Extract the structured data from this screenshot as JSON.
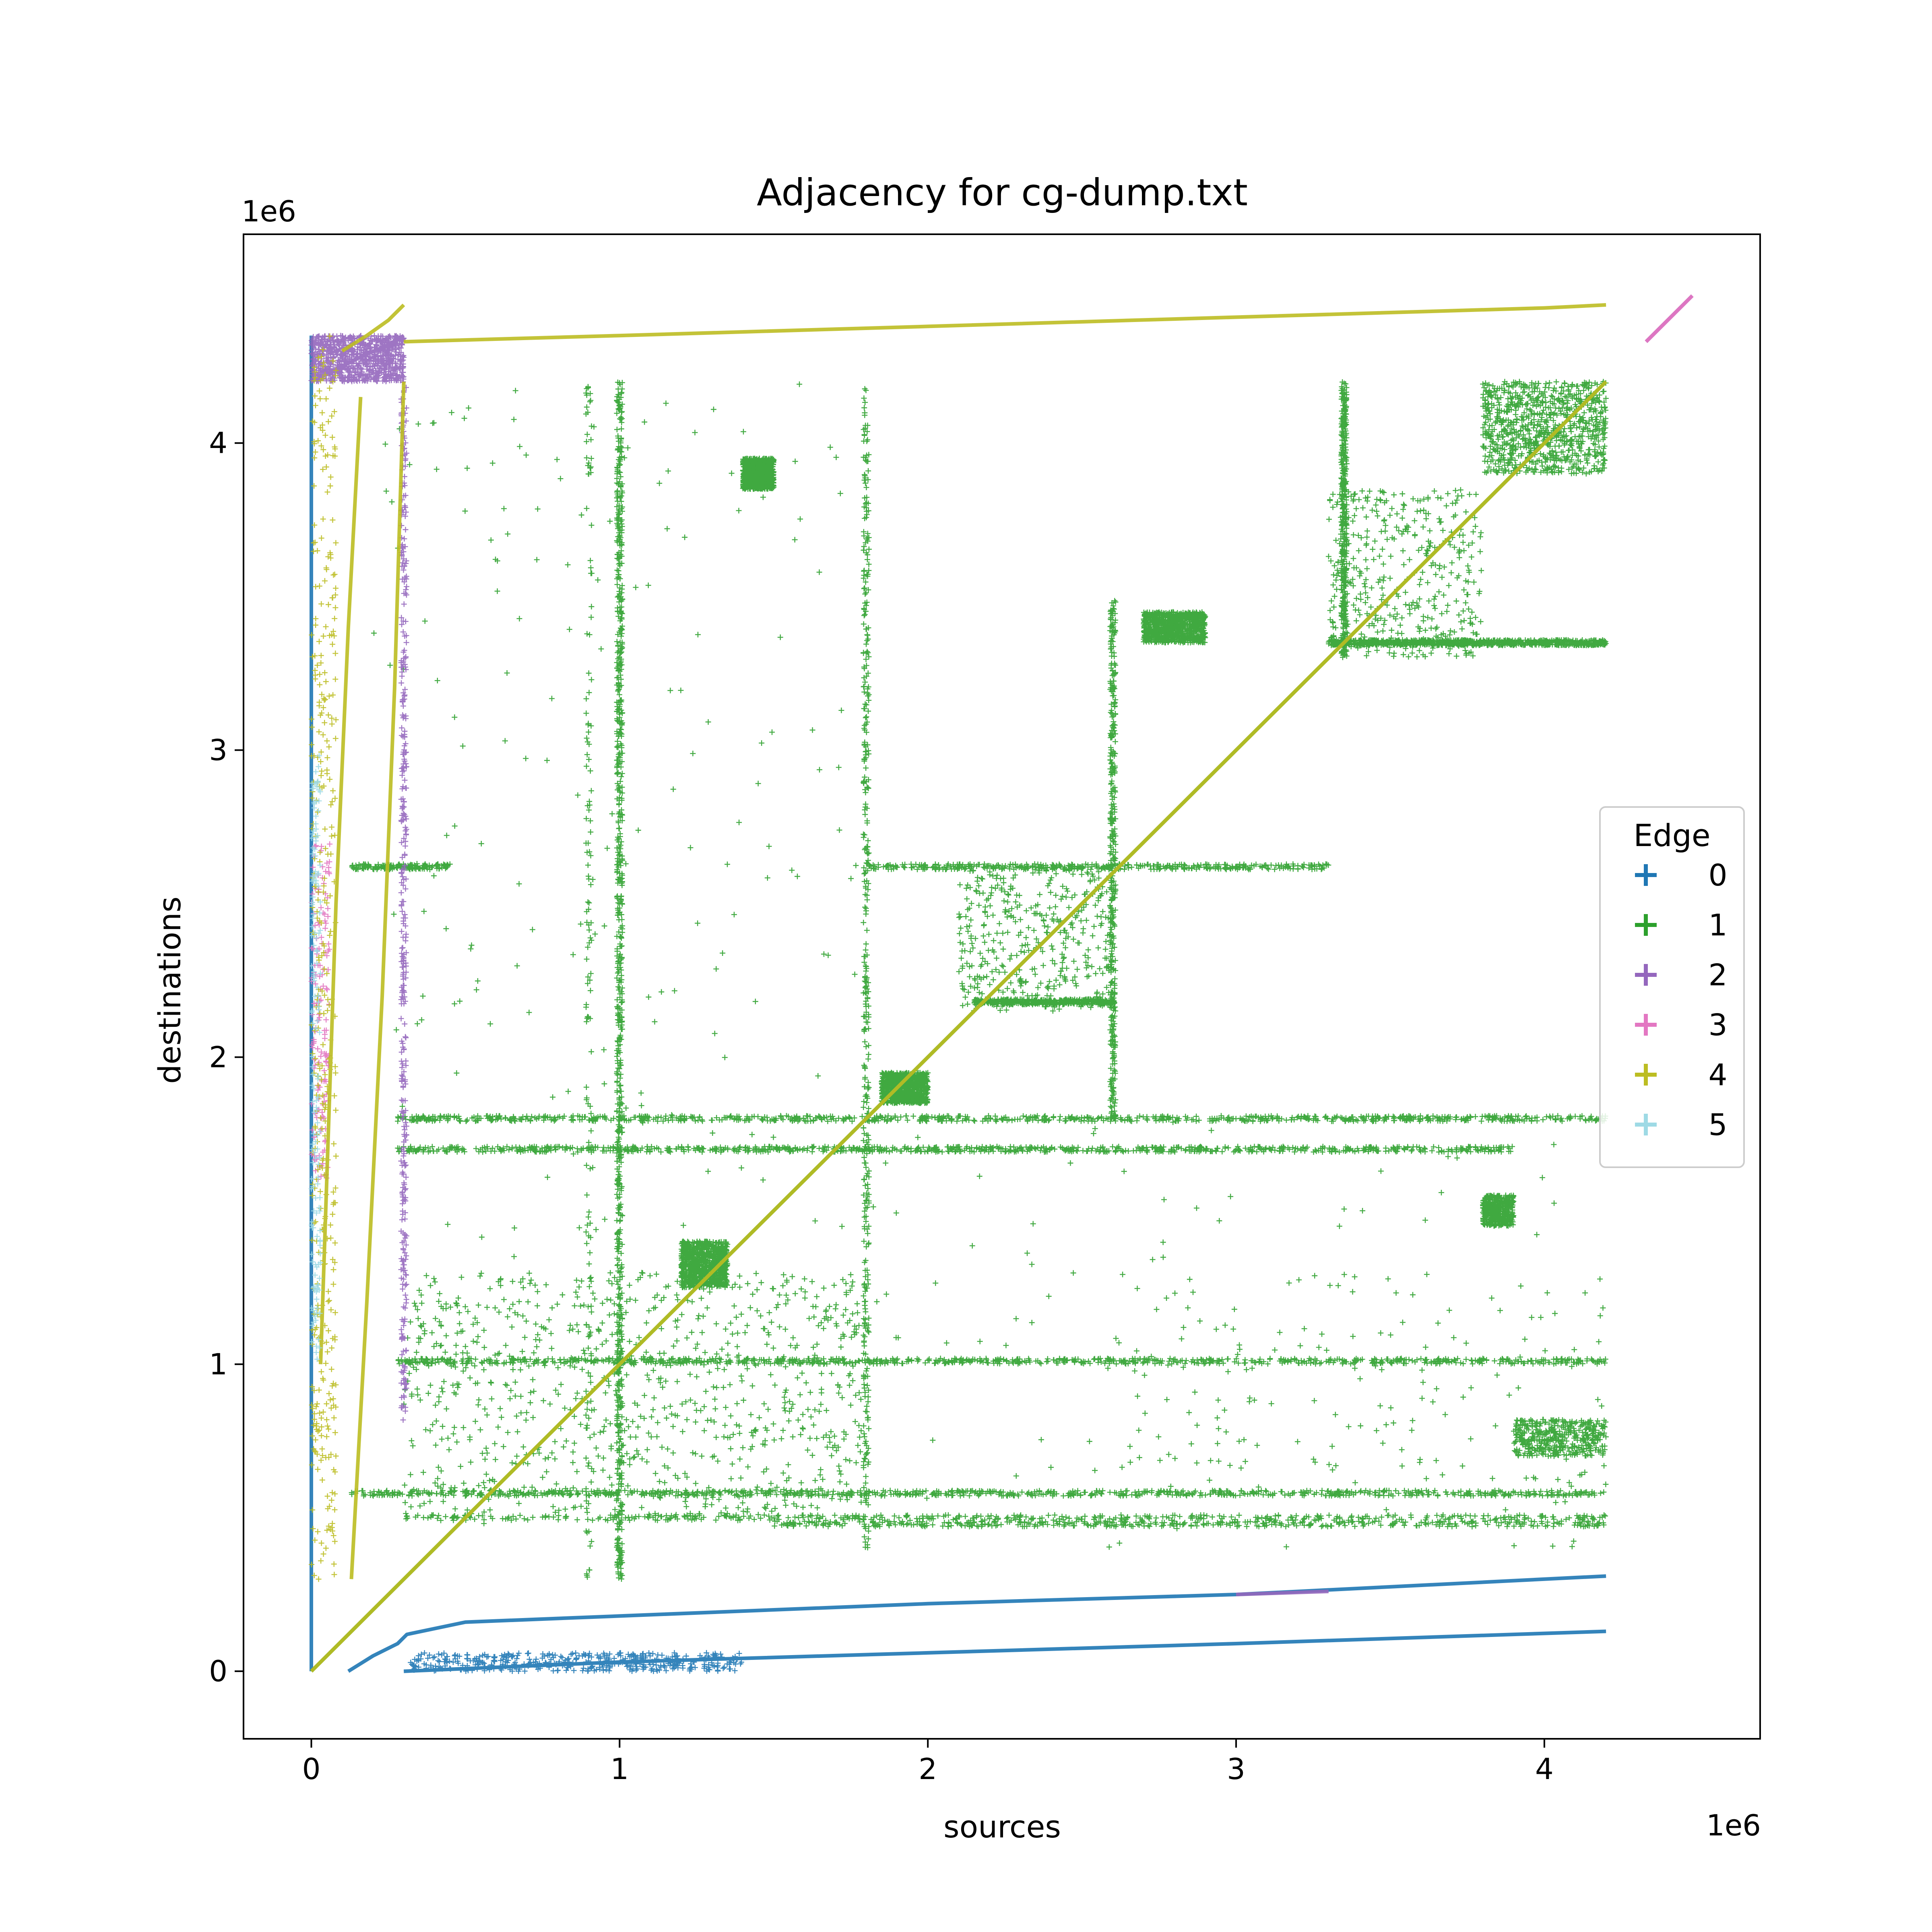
{
  "chart_data": {
    "type": "scatter",
    "title": "Adjacency for cg-dump.txt",
    "xlabel": "sources",
    "ylabel": "destinations",
    "x_offset_label": "1e6",
    "y_offset_label": "1e6",
    "xlim": [
      -220000,
      4700000
    ],
    "ylim": [
      -220000,
      4680000
    ],
    "x_ticks": [
      {
        "value": 0,
        "label": "0"
      },
      {
        "value": 1000000,
        "label": "1"
      },
      {
        "value": 2000000,
        "label": "2"
      },
      {
        "value": 3000000,
        "label": "3"
      },
      {
        "value": 4000000,
        "label": "4"
      }
    ],
    "y_ticks": [
      {
        "value": 0,
        "label": "0"
      },
      {
        "value": 1000000,
        "label": "1"
      },
      {
        "value": 2000000,
        "label": "2"
      },
      {
        "value": 3000000,
        "label": "3"
      },
      {
        "value": 4000000,
        "label": "4"
      }
    ],
    "grid": false,
    "legend": {
      "title": "Edge",
      "placement": "center-right",
      "entries": [
        {
          "label": "0",
          "color": "#1f77b4"
        },
        {
          "label": "1",
          "color": "#2ca02c"
        },
        {
          "label": "2",
          "color": "#9467bd"
        },
        {
          "label": "3",
          "color": "#e377c2"
        },
        {
          "label": "4",
          "color": "#bcbd22"
        },
        {
          "label": "5",
          "color": "#9edae5"
        }
      ]
    },
    "series": [
      {
        "name": "0",
        "color": "#1f77b4",
        "lines": [
          [
            [
              0,
              0
            ],
            [
              0,
              4350000
            ]
          ],
          [
            [
              120000,
              0
            ],
            [
              200000,
              50000
            ],
            [
              280000,
              90000
            ],
            [
              310000,
              120000
            ],
            [
              500000,
              160000
            ],
            [
              1000000,
              180000
            ],
            [
              2000000,
              220000
            ],
            [
              3000000,
              250000
            ],
            [
              4200000,
              310000
            ]
          ],
          [
            [
              300000,
              0
            ],
            [
              1000000,
              30000
            ],
            [
              2000000,
              60000
            ],
            [
              3000000,
              90000
            ],
            [
              4200000,
              130000
            ]
          ]
        ],
        "clusters": [
          {
            "x": [
              320000,
              1400000
            ],
            "y": [
              0,
              60000
            ],
            "density": "medium"
          }
        ]
      },
      {
        "name": "1",
        "color": "#2ca02c",
        "lines": [
          [
            [
              0,
              0
            ],
            [
              4200000,
              4200000
            ]
          ]
        ],
        "rows": [
          {
            "y": 580000,
            "x": [
              130000,
              4200000
            ],
            "density": "high"
          },
          {
            "y": 500000,
            "x": [
              300000,
              4200000
            ],
            "density": "medium"
          },
          {
            "y": 480000,
            "x": [
              1500000,
              4200000
            ],
            "density": "medium"
          },
          {
            "y": 1010000,
            "x": [
              280000,
              4200000
            ],
            "density": "high"
          },
          {
            "y": 1700000,
            "x": [
              280000,
              3900000
            ],
            "density": "high"
          },
          {
            "y": 1800000,
            "x": [
              280000,
              4200000
            ],
            "density": "high"
          },
          {
            "y": 2620000,
            "x": [
              1800000,
              3300000
            ],
            "density": "medium"
          },
          {
            "y": 2620000,
            "x": [
              130000,
              450000
            ],
            "density": "low"
          },
          {
            "y": 3350000,
            "x": [
              3300000,
              4200000
            ],
            "density": "high"
          },
          {
            "y": 2180000,
            "x": [
              2150000,
              2600000
            ],
            "density": "medium"
          }
        ],
        "columns": [
          {
            "x": 1000000,
            "y": [
              300000,
              4200000
            ],
            "density": "high"
          },
          {
            "x": 1800000,
            "y": [
              400000,
              4200000
            ],
            "density": "medium"
          },
          {
            "x": 2600000,
            "y": [
              1800000,
              3500000
            ],
            "density": "medium"
          },
          {
            "x": 3350000,
            "y": [
              3300000,
              4200000
            ],
            "density": "medium"
          },
          {
            "x": 900000,
            "y": [
              300000,
              4200000
            ],
            "density": "low"
          }
        ],
        "clusters": [
          {
            "x": [
              300000,
              1800000
            ],
            "y": [
              500000,
              1300000
            ],
            "density": "high"
          },
          {
            "x": [
              300000,
              4200000
            ],
            "y": [
              400000,
              1800000
            ],
            "density": "low"
          },
          {
            "x": [
              200000,
              1800000
            ],
            "y": [
              1800000,
              4200000
            ],
            "density": "low"
          },
          {
            "x": [
              2100000,
              2600000
            ],
            "y": [
              2150000,
              2620000
            ],
            "density": "medium"
          },
          {
            "x": [
              1200000,
              1350000
            ],
            "y": [
              1250000,
              1400000
            ],
            "density": "high"
          },
          {
            "x": [
              3300000,
              3800000
            ],
            "y": [
              3300000,
              3850000
            ],
            "density": "medium"
          },
          {
            "x": [
              3800000,
              4200000
            ],
            "y": [
              3900000,
              4200000
            ],
            "density": "high"
          },
          {
            "x": [
              2700000,
              2900000
            ],
            "y": [
              3350000,
              3450000
            ],
            "density": "high"
          },
          {
            "x": [
              1850000,
              2000000
            ],
            "y": [
              1850000,
              1950000
            ],
            "density": "high"
          },
          {
            "x": [
              1400000,
              1500000
            ],
            "y": [
              3850000,
              3950000
            ],
            "density": "high"
          },
          {
            "x": [
              3900000,
              4200000
            ],
            "y": [
              700000,
              820000
            ],
            "density": "medium"
          },
          {
            "x": [
              3800000,
              3900000
            ],
            "y": [
              1450000,
              1550000
            ],
            "density": "medium"
          },
          {
            "x": [
              2600000,
              4200000
            ],
            "y": [
              600000,
              1300000
            ],
            "density": "low"
          }
        ]
      },
      {
        "name": "2",
        "color": "#9467bd",
        "lines": [
          [
            [
              0,
              4200000
            ],
            [
              100000,
              4250000
            ],
            [
              180000,
              4290000
            ],
            [
              250000,
              4320000
            ],
            [
              300000,
              4350000
            ]
          ],
          [
            [
              4330000,
              4330000
            ],
            [
              4480000,
              4480000
            ]
          ],
          [
            [
              3000000,
              250000
            ],
            [
              3300000,
              260000
            ]
          ]
        ],
        "columns": [
          {
            "x": 300000,
            "y": [
              800000,
              4200000
            ],
            "density": "medium"
          }
        ],
        "clusters": [
          {
            "x": [
              0,
              300000
            ],
            "y": [
              4200000,
              4350000
            ],
            "density": "high"
          }
        ]
      },
      {
        "name": "3",
        "color": "#e377c2",
        "lines": [
          [
            [
              4330000,
              4330000
            ],
            [
              4480000,
              4480000
            ]
          ]
        ],
        "clusters": [
          {
            "x": [
              0,
              60000
            ],
            "y": [
              1600000,
              2700000
            ],
            "density": "low"
          }
        ]
      },
      {
        "name": "4",
        "color": "#bcbd22",
        "lines": [
          [
            [
              0,
              0
            ],
            [
              4200000,
              4200000
            ]
          ],
          [
            [
              130000,
              300000
            ],
            [
              180000,
              1200000
            ],
            [
              230000,
              2200000
            ],
            [
              270000,
              3200000
            ],
            [
              300000,
              4200000
            ]
          ],
          [
            [
              300000,
              4330000
            ],
            [
              1000000,
              4350000
            ],
            [
              2000000,
              4380000
            ],
            [
              3000000,
              4410000
            ],
            [
              4000000,
              4440000
            ],
            [
              4200000,
              4450000
            ]
          ],
          [
            [
              30000,
              1000000
            ],
            [
              80000,
              2500000
            ],
            [
              120000,
              3400000
            ],
            [
              160000,
              4150000
            ]
          ],
          [
            [
              100000,
              4300000
            ],
            [
              180000,
              4350000
            ],
            [
              250000,
              4400000
            ],
            [
              300000,
              4450000
            ]
          ]
        ],
        "clusters": [
          {
            "x": [
              0,
              80000
            ],
            "y": [
              300000,
              4350000
            ],
            "density": "medium"
          }
        ]
      },
      {
        "name": "5",
        "color": "#9edae5",
        "clusters": [
          {
            "x": [
              0,
              30000
            ],
            "y": [
              1000000,
              3000000
            ],
            "density": "low"
          }
        ]
      }
    ]
  }
}
